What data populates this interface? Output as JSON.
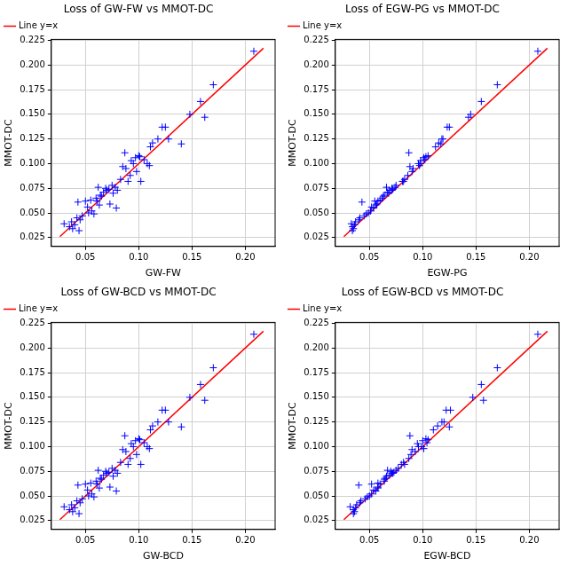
{
  "chart_data": [
    {
      "type": "scatter",
      "title": "Loss of GW-FW vs MMOT-DC",
      "x_label": "GW-FW",
      "y_label": "MMOT-DC",
      "xlim": [
        0.018,
        0.228
      ],
      "ylim": [
        0.016,
        0.226
      ],
      "xticks": [
        0.05,
        {
          "value": 0.1,
          "label": "0.10"
        },
        0.15,
        {
          "value": 0.2,
          "label": "0.20"
        }
      ],
      "yticks": [
        0.025,
        {
          "value": 0.05,
          "label": "0.050"
        },
        0.075,
        {
          "value": 0.1,
          "label": "0.100"
        },
        0.125,
        {
          "value": 0.15,
          "label": "0.150"
        },
        0.175,
        {
          "value": 0.2,
          "label": "0.200"
        },
        0.225
      ],
      "grid": true,
      "legend": "upper left",
      "series": [
        {
          "name": "Line y=x",
          "type": "line",
          "color": "#ff0000",
          "line_style": "solid",
          "x": [
            0.026,
            0.217
          ],
          "values": [
            0.026,
            0.217
          ]
        },
        {
          "type": "scatter",
          "color": "#0000ff",
          "marker": "plus",
          "x": [
            0.03,
            0.035,
            0.037,
            0.038,
            0.04,
            0.042,
            0.043,
            0.044,
            0.045,
            0.047,
            0.05,
            0.052,
            0.053,
            0.055,
            0.056,
            0.058,
            0.06,
            0.061,
            0.062,
            0.063,
            0.064,
            0.065,
            0.067,
            0.069,
            0.07,
            0.072,
            0.073,
            0.075,
            0.076,
            0.078,
            0.079,
            0.08,
            0.083,
            0.085,
            0.087,
            0.088,
            0.09,
            0.092,
            0.093,
            0.095,
            0.097,
            0.098,
            0.1,
            0.101,
            0.102,
            0.105,
            0.108,
            0.11,
            0.111,
            0.113,
            0.118,
            0.122,
            0.125,
            0.128,
            0.14,
            0.148,
            0.158,
            0.162,
            0.17,
            0.208
          ],
          "values": [
            0.039,
            0.036,
            0.041,
            0.034,
            0.038,
            0.045,
            0.061,
            0.032,
            0.043,
            0.047,
            0.062,
            0.056,
            0.05,
            0.063,
            0.052,
            0.049,
            0.065,
            0.062,
            0.076,
            0.058,
            0.068,
            0.067,
            0.071,
            0.075,
            0.073,
            0.074,
            0.059,
            0.078,
            0.07,
            0.076,
            0.055,
            0.073,
            0.084,
            0.097,
            0.111,
            0.095,
            0.082,
            0.088,
            0.103,
            0.1,
            0.106,
            0.092,
            0.108,
            0.107,
            0.082,
            0.104,
            0.1,
            0.098,
            0.117,
            0.121,
            0.125,
            0.137,
            0.137,
            0.125,
            0.12,
            0.15,
            0.163,
            0.147,
            0.18,
            0.214
          ]
        }
      ]
    },
    {
      "type": "scatter",
      "title": "Loss of EGW-PG vs MMOT-DC",
      "x_label": "EGW-PG",
      "y_label": "MMOT-DC",
      "xlim": [
        0.018,
        0.228
      ],
      "ylim": [
        0.016,
        0.226
      ],
      "xticks": [
        0.05,
        {
          "value": 0.1,
          "label": "0.10"
        },
        0.15,
        {
          "value": 0.2,
          "label": "0.20"
        }
      ],
      "yticks": [
        0.025,
        {
          "value": 0.05,
          "label": "0.050"
        },
        0.075,
        {
          "value": 0.1,
          "label": "0.100"
        },
        0.125,
        {
          "value": 0.15,
          "label": "0.150"
        },
        0.175,
        {
          "value": 0.2,
          "label": "0.200"
        },
        0.225
      ],
      "grid": true,
      "legend": "upper left",
      "series": [
        {
          "name": "Line y=x",
          "type": "line",
          "color": "#ff0000",
          "line_style": "solid",
          "x": [
            0.026,
            0.217
          ],
          "values": [
            0.026,
            0.217
          ]
        },
        {
          "type": "scatter",
          "color": "#0000ff",
          "marker": "plus",
          "x": [
            0.033,
            0.034,
            0.037,
            0.035,
            0.036,
            0.041,
            0.043,
            0.034,
            0.04,
            0.045,
            0.055,
            0.052,
            0.049,
            0.06,
            0.051,
            0.047,
            0.062,
            0.058,
            0.066,
            0.056,
            0.064,
            0.063,
            0.067,
            0.071,
            0.069,
            0.072,
            0.057,
            0.075,
            0.068,
            0.074,
            0.054,
            0.071,
            0.083,
            0.088,
            0.087,
            0.091,
            0.081,
            0.086,
            0.098,
            0.096,
            0.101,
            0.09,
            0.105,
            0.103,
            0.082,
            0.102,
            0.098,
            0.097,
            0.112,
            0.115,
            0.118,
            0.123,
            0.125,
            0.119,
            0.117,
            0.145,
            0.155,
            0.143,
            0.17,
            0.208
          ],
          "values": [
            0.039,
            0.036,
            0.041,
            0.034,
            0.038,
            0.045,
            0.061,
            0.032,
            0.043,
            0.047,
            0.062,
            0.056,
            0.05,
            0.063,
            0.052,
            0.049,
            0.065,
            0.062,
            0.076,
            0.058,
            0.068,
            0.067,
            0.071,
            0.075,
            0.073,
            0.074,
            0.059,
            0.078,
            0.07,
            0.076,
            0.055,
            0.073,
            0.084,
            0.097,
            0.111,
            0.095,
            0.082,
            0.088,
            0.103,
            0.1,
            0.106,
            0.092,
            0.108,
            0.107,
            0.082,
            0.104,
            0.1,
            0.098,
            0.117,
            0.121,
            0.125,
            0.137,
            0.137,
            0.125,
            0.12,
            0.15,
            0.163,
            0.147,
            0.18,
            0.214
          ]
        }
      ]
    },
    {
      "type": "scatter",
      "title": "Loss of GW-BCD vs MMOT-DC",
      "x_label": "GW-BCD",
      "y_label": "MMOT-DC",
      "xlim": [
        0.018,
        0.228
      ],
      "ylim": [
        0.016,
        0.226
      ],
      "xticks": [
        0.05,
        {
          "value": 0.1,
          "label": "0.10"
        },
        0.15,
        {
          "value": 0.2,
          "label": "0.20"
        }
      ],
      "yticks": [
        0.025,
        {
          "value": 0.05,
          "label": "0.050"
        },
        0.075,
        {
          "value": 0.1,
          "label": "0.100"
        },
        0.125,
        {
          "value": 0.15,
          "label": "0.150"
        },
        0.175,
        {
          "value": 0.2,
          "label": "0.200"
        },
        0.225
      ],
      "grid": true,
      "legend": "upper left",
      "series": [
        {
          "name": "Line y=x",
          "type": "line",
          "color": "#ff0000",
          "line_style": "solid",
          "x": [
            0.026,
            0.217
          ],
          "values": [
            0.026,
            0.217
          ]
        },
        {
          "type": "scatter",
          "color": "#0000ff",
          "marker": "plus",
          "x": [
            0.03,
            0.035,
            0.037,
            0.038,
            0.04,
            0.042,
            0.043,
            0.044,
            0.045,
            0.047,
            0.05,
            0.052,
            0.053,
            0.055,
            0.056,
            0.058,
            0.06,
            0.061,
            0.062,
            0.063,
            0.064,
            0.065,
            0.067,
            0.069,
            0.07,
            0.072,
            0.073,
            0.075,
            0.076,
            0.078,
            0.079,
            0.08,
            0.083,
            0.085,
            0.087,
            0.088,
            0.09,
            0.092,
            0.093,
            0.095,
            0.097,
            0.098,
            0.1,
            0.101,
            0.102,
            0.105,
            0.108,
            0.11,
            0.111,
            0.113,
            0.118,
            0.122,
            0.125,
            0.128,
            0.14,
            0.148,
            0.158,
            0.162,
            0.17,
            0.208
          ],
          "values": [
            0.039,
            0.036,
            0.041,
            0.034,
            0.038,
            0.045,
            0.061,
            0.032,
            0.043,
            0.047,
            0.062,
            0.056,
            0.05,
            0.063,
            0.052,
            0.049,
            0.065,
            0.062,
            0.076,
            0.058,
            0.068,
            0.067,
            0.071,
            0.075,
            0.073,
            0.074,
            0.059,
            0.078,
            0.07,
            0.076,
            0.055,
            0.073,
            0.084,
            0.097,
            0.111,
            0.095,
            0.082,
            0.088,
            0.103,
            0.1,
            0.106,
            0.092,
            0.108,
            0.107,
            0.082,
            0.104,
            0.1,
            0.098,
            0.117,
            0.121,
            0.125,
            0.137,
            0.137,
            0.125,
            0.12,
            0.15,
            0.163,
            0.147,
            0.18,
            0.214
          ]
        }
      ]
    },
    {
      "type": "scatter",
      "title": "Loss of EGW-BCD vs MMOT-DC",
      "x_label": "EGW-BCD",
      "y_label": "MMOT-DC",
      "xlim": [
        0.018,
        0.228
      ],
      "ylim": [
        0.016,
        0.226
      ],
      "xticks": [
        0.05,
        {
          "value": 0.1,
          "label": "0.10"
        },
        0.15,
        {
          "value": 0.2,
          "label": "0.20"
        }
      ],
      "yticks": [
        0.025,
        {
          "value": 0.05,
          "label": "0.050"
        },
        0.075,
        {
          "value": 0.1,
          "label": "0.100"
        },
        0.125,
        {
          "value": 0.15,
          "label": "0.150"
        },
        0.175,
        {
          "value": 0.2,
          "label": "0.200"
        },
        0.225
      ],
      "grid": true,
      "legend": "upper left",
      "series": [
        {
          "name": "Line y=x",
          "type": "line",
          "color": "#ff0000",
          "line_style": "solid",
          "x": [
            0.026,
            0.217
          ],
          "values": [
            0.026,
            0.217
          ]
        },
        {
          "type": "scatter",
          "color": "#0000ff",
          "marker": "plus",
          "x": [
            0.032,
            0.035,
            0.038,
            0.036,
            0.037,
            0.042,
            0.04,
            0.035,
            0.041,
            0.046,
            0.052,
            0.054,
            0.05,
            0.058,
            0.052,
            0.048,
            0.064,
            0.06,
            0.067,
            0.058,
            0.065,
            0.064,
            0.069,
            0.07,
            0.071,
            0.073,
            0.058,
            0.077,
            0.066,
            0.075,
            0.056,
            0.072,
            0.082,
            0.09,
            0.088,
            0.093,
            0.08,
            0.087,
            0.095,
            0.099,
            0.1,
            0.089,
            0.103,
            0.105,
            0.083,
            0.104,
            0.096,
            0.101,
            0.11,
            0.114,
            0.118,
            0.122,
            0.126,
            0.12,
            0.125,
            0.147,
            0.155,
            0.157,
            0.17,
            0.208
          ],
          "values": [
            0.039,
            0.036,
            0.041,
            0.034,
            0.038,
            0.045,
            0.061,
            0.032,
            0.043,
            0.047,
            0.062,
            0.056,
            0.05,
            0.063,
            0.052,
            0.049,
            0.065,
            0.062,
            0.076,
            0.058,
            0.068,
            0.067,
            0.071,
            0.075,
            0.073,
            0.074,
            0.059,
            0.078,
            0.07,
            0.076,
            0.055,
            0.073,
            0.084,
            0.097,
            0.111,
            0.095,
            0.082,
            0.088,
            0.103,
            0.1,
            0.106,
            0.092,
            0.108,
            0.107,
            0.082,
            0.104,
            0.1,
            0.098,
            0.117,
            0.121,
            0.125,
            0.137,
            0.137,
            0.125,
            0.12,
            0.15,
            0.163,
            0.147,
            0.18,
            0.214
          ]
        }
      ]
    }
  ]
}
